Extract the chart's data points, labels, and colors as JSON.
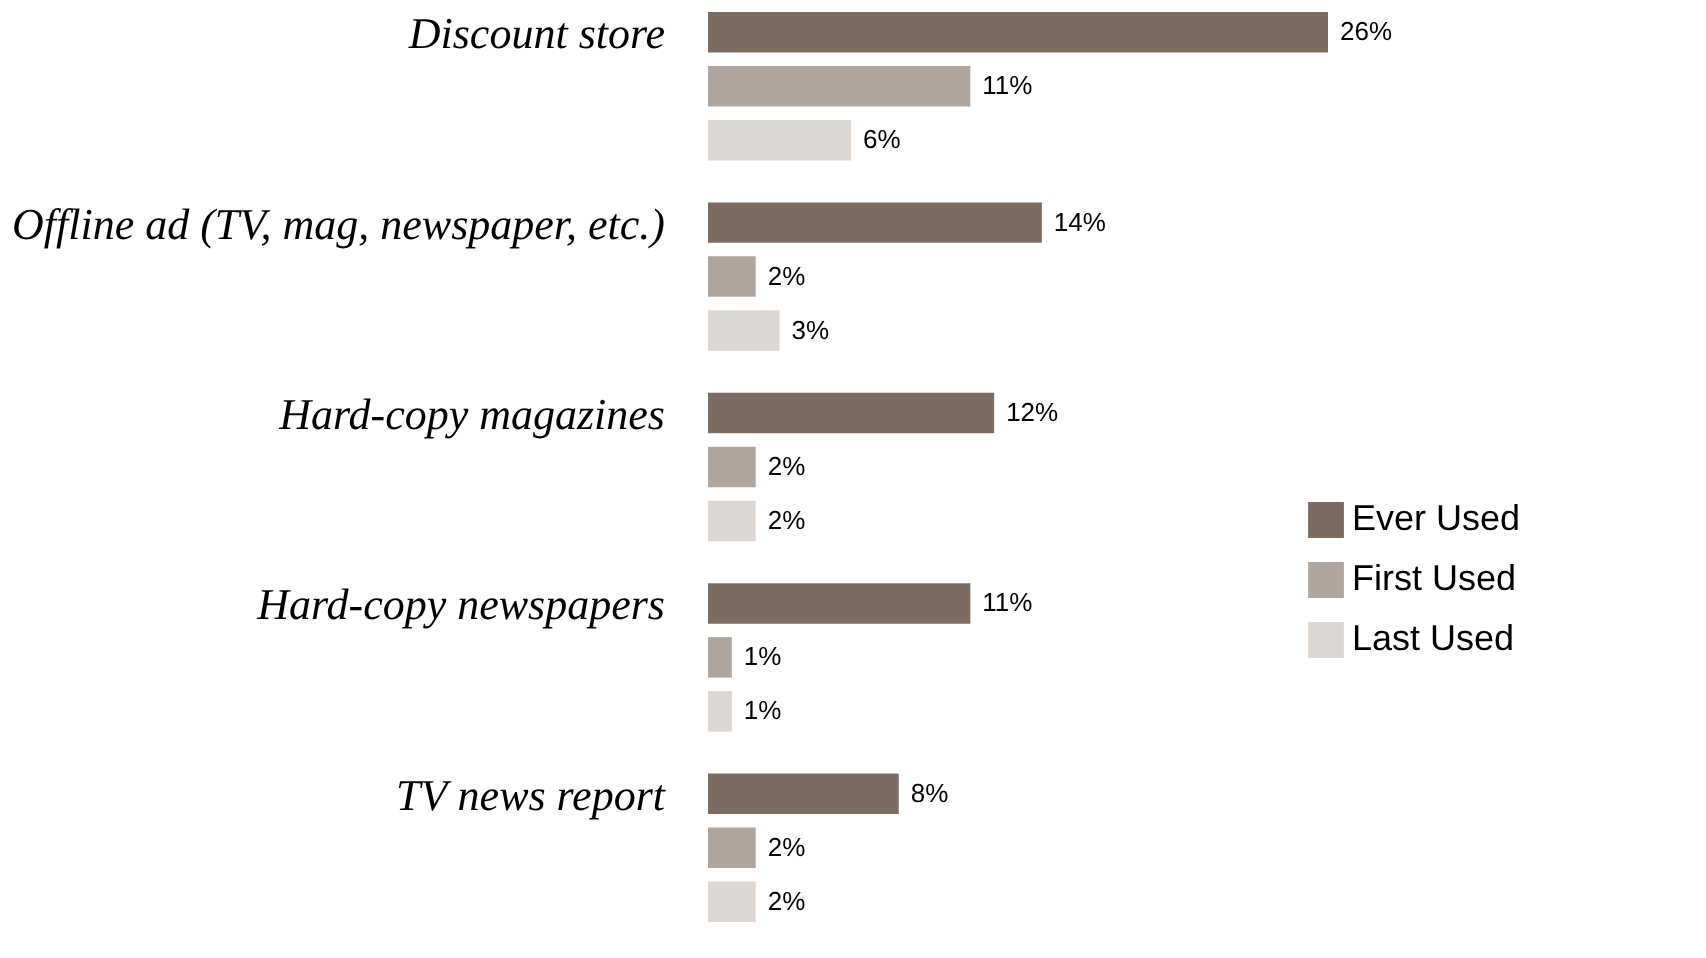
{
  "chart_data": {
    "type": "bar",
    "orientation": "horizontal",
    "legend": "right",
    "categories": [
      "Discount store",
      "Offline ad (TV, mag, newspaper, etc.)",
      "Hard-copy magazines",
      "Hard-copy newspapers",
      "TV news report"
    ],
    "series": [
      {
        "name": "Ever Used",
        "color": "#7b6b61",
        "values": [
          26,
          14,
          12,
          11,
          8
        ],
        "value_labels": [
          "26%",
          "14%",
          "12%",
          "11%",
          "8%"
        ]
      },
      {
        "name": "First Used",
        "color": "#b1a69d",
        "values": [
          11,
          2,
          2,
          1,
          2
        ],
        "value_labels": [
          "11%",
          "2%",
          "2%",
          "1%",
          "2%"
        ]
      },
      {
        "name": "Last Used",
        "color": "#dcd7d3",
        "values": [
          6,
          3,
          2,
          1,
          2
        ],
        "value_labels": [
          "6%",
          "3%",
          "2%",
          "1%",
          "2%"
        ]
      }
    ]
  }
}
